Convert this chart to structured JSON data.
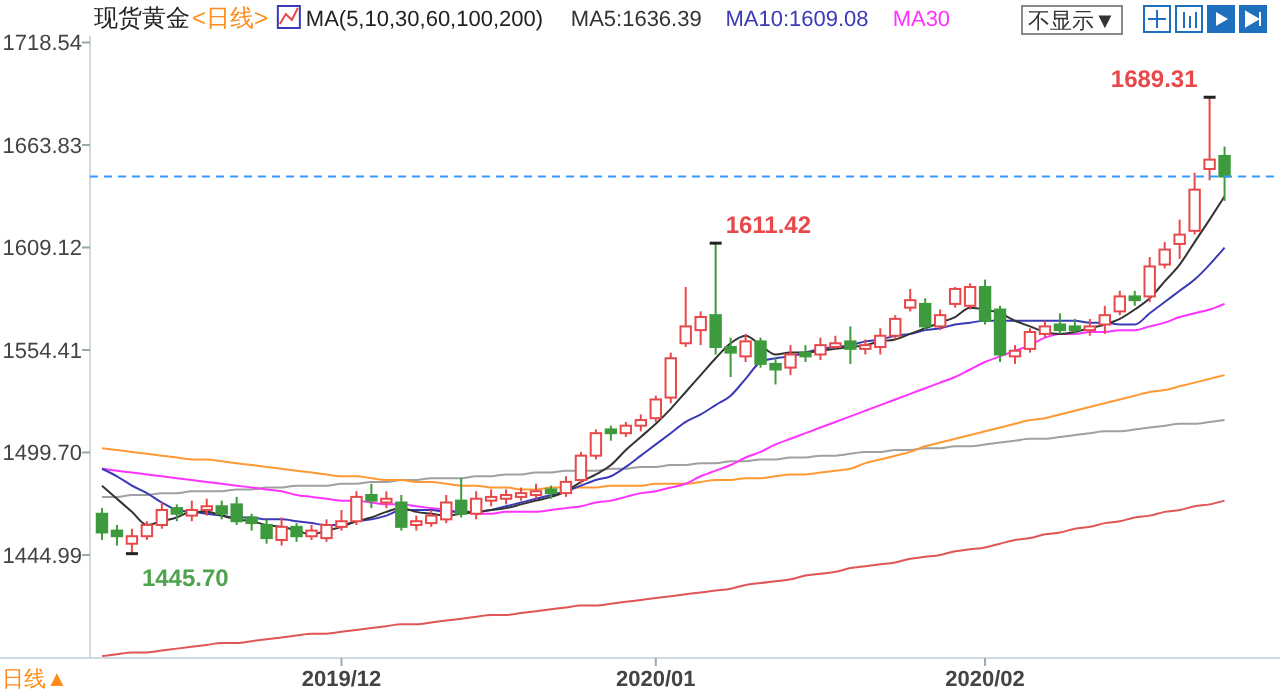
{
  "chart_data": {
    "type": "candlestick",
    "title": "现货黄金",
    "subtitle": "<日线>",
    "categories": [
      null,
      null,
      null,
      null,
      null,
      null,
      null,
      null,
      null,
      null,
      null,
      null,
      null,
      null,
      null,
      null,
      "2019/12",
      null,
      null,
      null,
      null,
      null,
      null,
      null,
      null,
      null,
      null,
      null,
      null,
      null,
      null,
      null,
      null,
      null,
      null,
      null,
      null,
      "2020/01",
      null,
      null,
      null,
      null,
      null,
      null,
      null,
      null,
      null,
      null,
      null,
      null,
      null,
      null,
      null,
      null,
      null,
      null,
      null,
      null,
      null,
      "2020/02",
      null,
      null,
      null,
      null,
      null,
      null,
      null,
      null,
      null,
      null,
      null,
      null,
      null,
      null,
      null,
      null
    ],
    "ylim": [
      1390,
      1722
    ],
    "yticks": [
      1444.99,
      {
        "value": 1499.7,
        "label": "1499.70"
      },
      1554.41,
      1609.12,
      1663.83,
      1718.54
    ],
    "legend": "top",
    "ref_lines": [
      {
        "axis": "y",
        "value": 1647,
        "color": "#3399ff",
        "line_style": "dashed"
      }
    ],
    "annotations": [
      "MA(5,10,30,60,100,200)",
      "不显示▼",
      "日线▲",
      "1611.42",
      "1689.31",
      "1445.70"
    ],
    "series": [
      {
        "type": "line",
        "color": "#e05555",
        "values": [
          1391,
          1392,
          1393,
          1393,
          1394,
          1395,
          1396,
          1397,
          1398,
          1398,
          1399,
          1400,
          1401,
          1402,
          1403,
          1403,
          1404,
          1405,
          1406,
          1407,
          1408,
          1408,
          1409,
          1410,
          1411,
          1412,
          1413,
          1413,
          1414,
          1415,
          1416,
          1417,
          1418,
          1418,
          1419,
          1420,
          1421,
          1422,
          1423,
          1424,
          1425,
          1426,
          1427,
          1429,
          1430,
          1431,
          1432,
          1434,
          1435,
          1436,
          1438,
          1439,
          1440,
          1441,
          1443,
          1444,
          1445,
          1447,
          1448,
          1449,
          1451,
          1453,
          1454,
          1456,
          1457,
          1459,
          1460,
          1462,
          1463,
          1465,
          1466,
          1468,
          1469,
          1471,
          1472,
          1474
        ]
      },
      {
        "type": "line",
        "color": "#a0a0a0",
        "values": [
          1476,
          1476,
          1477,
          1477,
          1478,
          1478,
          1479,
          1479,
          1479,
          1480,
          1480,
          1481,
          1481,
          1482,
          1482,
          1482,
          1483,
          1483,
          1484,
          1484,
          1485,
          1485,
          1486,
          1486,
          1486,
          1487,
          1487,
          1488,
          1488,
          1489,
          1489,
          1490,
          1490,
          1490,
          1491,
          1491,
          1492,
          1492,
          1493,
          1493,
          1494,
          1494,
          1495,
          1495,
          1496,
          1496,
          1497,
          1497,
          1498,
          1498,
          1499,
          1500,
          1500,
          1501,
          1501,
          1502,
          1502,
          1503,
          1503,
          1504,
          1505,
          1506,
          1507,
          1507,
          1508,
          1509,
          1510,
          1511,
          1511,
          1512,
          1513,
          1514,
          1515,
          1515,
          1516,
          1517
        ]
      },
      {
        "type": "line",
        "color": "#ff9933",
        "values": [
          1502,
          1501,
          1500,
          1499,
          1498,
          1497,
          1496,
          1496,
          1495,
          1494,
          1493,
          1492,
          1491,
          1490,
          1489,
          1488,
          1487,
          1487,
          1486,
          1485,
          1485,
          1484,
          1484,
          1483,
          1482,
          1482,
          1481,
          1481,
          1480,
          1480,
          1481,
          1481,
          1481,
          1481,
          1482,
          1482,
          1482,
          1483,
          1483,
          1483,
          1484,
          1485,
          1485,
          1486,
          1486,
          1487,
          1488,
          1488,
          1489,
          1490,
          1491,
          1494,
          1496,
          1498,
          1500,
          1503,
          1505,
          1507,
          1509,
          1511,
          1513,
          1515,
          1517,
          1518,
          1520,
          1522,
          1524,
          1526,
          1528,
          1530,
          1532,
          1533,
          1535,
          1537,
          1539,
          1541
        ]
      },
      {
        "type": "line",
        "name": "MA30",
        "color": "#ff33ff",
        "values": [
          1491,
          1490,
          1489,
          1488,
          1487,
          1486,
          1485,
          1484,
          1483,
          1482,
          1481,
          1480,
          1479,
          1477,
          1476,
          1475,
          1474,
          1474,
          1473,
          1472,
          1472,
          1471,
          1470,
          1469,
          1468,
          1467,
          1467,
          1468,
          1468,
          1468,
          1469,
          1470,
          1471,
          1473,
          1474,
          1476,
          1478,
          1479,
          1481,
          1483,
          1487,
          1490,
          1493,
          1497,
          1500,
          1504,
          1507,
          1510,
          1513,
          1516,
          1519,
          1522,
          1525,
          1528,
          1531,
          1534,
          1537,
          1540,
          1544,
          1548,
          1551,
          1554,
          1557,
          1561,
          1563,
          1563,
          1564,
          1564,
          1565,
          1565,
          1567,
          1569,
          1572,
          1574,
          1576,
          1579
        ]
      },
      {
        "type": "line",
        "name": "MA10:1609.08",
        "color": "#3a3ab8",
        "values": [
          1491,
          1487,
          1482,
          1478,
          1473,
          1469,
          1468,
          1467,
          1466,
          1465,
          1465,
          1464,
          1464,
          1463,
          1462,
          1461,
          1461,
          1463,
          1464,
          1466,
          1469,
          1469,
          1469,
          1468,
          1468,
          1468,
          1469,
          1471,
          1473,
          1475,
          1477,
          1479,
          1482,
          1485,
          1487,
          1492,
          1498,
          1504,
          1510,
          1516,
          1520,
          1525,
          1530,
          1539,
          1548,
          1550,
          1551,
          1553,
          1555,
          1556,
          1557,
          1559,
          1560,
          1562,
          1563,
          1565,
          1566,
          1568,
          1569,
          1570,
          1570,
          1570,
          1570,
          1570,
          1570,
          1570,
          1569,
          1569,
          1568,
          1568,
          1574,
          1580,
          1586,
          1592,
          1600,
          1609.08
        ]
      },
      {
        "type": "line",
        "name": "MA5:1636.39",
        "color": "#333333",
        "values": [
          1482,
          1475,
          1468,
          1461,
          1463,
          1465,
          1468,
          1468,
          1466,
          1464,
          1463,
          1461,
          1460,
          1458,
          1456,
          1458,
          1460,
          1463,
          1465,
          1468,
          1470,
          1468,
          1467,
          1466,
          1467,
          1468,
          1469,
          1470,
          1472,
          1474,
          1476,
          1479,
          1484,
          1488,
          1493,
          1501,
          1508,
          1515,
          1523,
          1532,
          1541,
          1550,
          1558,
          1562,
          1557,
          1552,
          1553,
          1553,
          1554,
          1555,
          1556,
          1557,
          1559,
          1560,
          1563,
          1566,
          1569,
          1572,
          1577,
          1576,
          1574,
          1570,
          1567,
          1564,
          1563,
          1564,
          1566,
          1568,
          1571,
          1576,
          1582,
          1591,
          1600,
          1612,
          1624,
          1636.39
        ]
      },
      {
        "ohlc": [
          [
            1467,
            1470,
            1453,
            1457
          ],
          [
            1458,
            1461,
            1450,
            1455
          ],
          [
            1451,
            1459,
            1445.7,
            1455
          ],
          [
            1455,
            1463,
            1453,
            1461
          ],
          [
            1461,
            1473,
            1459,
            1469
          ],
          [
            1470,
            1472,
            1463,
            1467
          ],
          [
            1466,
            1474,
            1463,
            1469
          ],
          [
            1469,
            1475,
            1466,
            1471
          ],
          [
            1471,
            1474,
            1464,
            1467
          ],
          [
            1472,
            1476,
            1461,
            1463
          ],
          [
            1465,
            1467,
            1458,
            1462
          ],
          [
            1461,
            1464,
            1451,
            1454
          ],
          [
            1453,
            1465,
            1450,
            1460
          ],
          [
            1460,
            1462,
            1452,
            1455
          ],
          [
            1455,
            1461,
            1453,
            1458
          ],
          [
            1454,
            1464,
            1452,
            1461
          ],
          [
            1460,
            1469,
            1458,
            1463
          ],
          [
            1463,
            1479,
            1461,
            1476
          ],
          [
            1477,
            1483,
            1470,
            1474
          ],
          [
            1473,
            1479,
            1470,
            1475
          ],
          [
            1473,
            1477,
            1458,
            1460
          ],
          [
            1461,
            1466,
            1458,
            1463
          ],
          [
            1462,
            1469,
            1460,
            1466
          ],
          [
            1464,
            1477,
            1462,
            1473
          ],
          [
            1474,
            1486,
            1465,
            1467
          ],
          [
            1467,
            1479,
            1464,
            1475
          ],
          [
            1474,
            1480,
            1471,
            1476
          ],
          [
            1475,
            1480,
            1472,
            1477
          ],
          [
            1476,
            1481,
            1474,
            1478
          ],
          [
            1477,
            1483,
            1475,
            1479
          ],
          [
            1480,
            1482,
            1475,
            1478
          ],
          [
            1478,
            1487,
            1476,
            1484
          ],
          [
            1485,
            1500,
            1483,
            1498
          ],
          [
            1498,
            1512,
            1496,
            1510
          ],
          [
            1512,
            1514,
            1506,
            1510
          ],
          [
            1510,
            1516,
            1508,
            1514
          ],
          [
            1514,
            1520,
            1511,
            1517
          ],
          [
            1518,
            1530,
            1516,
            1528
          ],
          [
            1529,
            1553,
            1526,
            1550
          ],
          [
            1558,
            1588,
            1556,
            1567
          ],
          [
            1565,
            1575,
            1557,
            1572
          ],
          [
            1573,
            1611.42,
            1552,
            1556
          ],
          [
            1556,
            1561,
            1540,
            1553
          ],
          [
            1551,
            1563,
            1548,
            1559
          ],
          [
            1559,
            1561,
            1545,
            1547
          ],
          [
            1547,
            1550,
            1536,
            1544
          ],
          [
            1545,
            1557,
            1541,
            1552
          ],
          [
            1553,
            1557,
            1548,
            1551
          ],
          [
            1552,
            1561,
            1549,
            1557
          ],
          [
            1556,
            1562,
            1555,
            1558
          ],
          [
            1559,
            1567,
            1547,
            1555
          ],
          [
            1555,
            1560,
            1552,
            1557
          ],
          [
            1556,
            1566,
            1552,
            1562
          ],
          [
            1562,
            1573,
            1560,
            1571
          ],
          [
            1577,
            1587,
            1575,
            1581
          ],
          [
            1579,
            1582,
            1565,
            1567
          ],
          [
            1567,
            1576,
            1565,
            1573
          ],
          [
            1579,
            1588,
            1577,
            1587
          ],
          [
            1578,
            1590,
            1576,
            1588
          ],
          [
            1588,
            1592,
            1568,
            1570
          ],
          [
            1576,
            1578,
            1548,
            1552
          ],
          [
            1551,
            1557,
            1547,
            1554
          ],
          [
            1555,
            1566,
            1553,
            1564
          ],
          [
            1563,
            1570,
            1561,
            1567
          ],
          [
            1568,
            1574,
            1563,
            1565
          ],
          [
            1567,
            1571,
            1563,
            1565
          ],
          [
            1565,
            1571,
            1562,
            1567
          ],
          [
            1568,
            1578,
            1563,
            1573
          ],
          [
            1575,
            1586,
            1573,
            1583
          ],
          [
            1583,
            1586,
            1578,
            1581
          ],
          [
            1583,
            1604,
            1580,
            1599
          ],
          [
            1600,
            1612,
            1598,
            1608
          ],
          [
            1611,
            1624,
            1603,
            1616
          ],
          [
            1618,
            1649,
            1616,
            1640
          ],
          [
            1651,
            1689.31,
            1645,
            1656
          ],
          [
            1658,
            1663,
            1634,
            1647
          ]
        ],
        "colors": [
          "#3d9a3d",
          "#3d9a3d",
          "#e8484a",
          "#e8484a",
          "#e8484a",
          "#3d9a3d",
          "#e8484a",
          "#e8484a",
          "#3d9a3d",
          "#3d9a3d",
          "#3d9a3d",
          "#3d9a3d",
          "#e8484a",
          "#3d9a3d",
          "#e8484a",
          "#e8484a",
          "#e8484a",
          "#e8484a",
          "#3d9a3d",
          "#e8484a",
          "#3d9a3d",
          "#e8484a",
          "#e8484a",
          "#e8484a",
          "#3d9a3d",
          "#e8484a",
          "#e8484a",
          "#e8484a",
          "#e8484a",
          "#e8484a",
          "#3d9a3d",
          "#e8484a",
          "#e8484a",
          "#e8484a",
          "#3d9a3d",
          "#e8484a",
          "#e8484a",
          "#e8484a",
          "#e8484a",
          "#e8484a",
          "#e8484a",
          "#3d9a3d",
          "#3d9a3d",
          "#e8484a",
          "#3d9a3d",
          "#3d9a3d",
          "#e8484a",
          "#3d9a3d",
          "#e8484a",
          "#e8484a",
          "#3d9a3d",
          "#e8484a",
          "#e8484a",
          "#e8484a",
          "#e8484a",
          "#3d9a3d",
          "#e8484a",
          "#e8484a",
          "#e8484a",
          "#3d9a3d",
          "#3d9a3d",
          "#e8484a",
          "#e8484a",
          "#e8484a",
          "#3d9a3d",
          "#3d9a3d",
          "#e8484a",
          "#e8484a",
          "#e8484a",
          "#3d9a3d",
          "#e8484a",
          "#e8484a",
          "#e8484a",
          "#e8484a",
          "#e8484a",
          "#3d9a3d"
        ]
      }
    ]
  }
}
